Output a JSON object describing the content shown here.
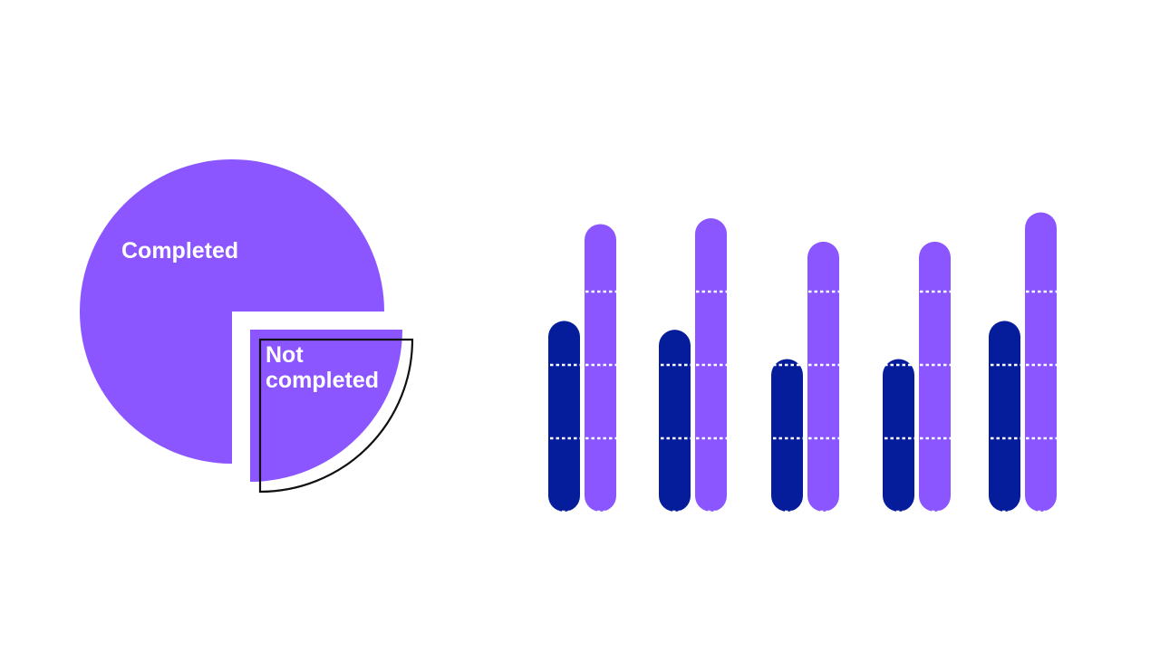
{
  "colors": {
    "background": "#ffffff",
    "primary_purple": "#8b55ff",
    "navy": "#061d9b",
    "outline": "#111111",
    "gridline": "#ffffff"
  },
  "chart_data": [
    {
      "type": "pie",
      "slices": [
        {
          "label": "Completed",
          "value": 75
        },
        {
          "label": "Not completed",
          "value": 25
        }
      ],
      "exploded": "Not completed",
      "label_lines": {
        "completed": [
          "Completed"
        ],
        "not_completed": [
          "Not",
          "completed"
        ]
      }
    },
    {
      "type": "bar",
      "groups": 5,
      "ylim": [
        0,
        100
      ],
      "series": [
        {
          "values": [
            65,
            62,
            52,
            52,
            65
          ]
        },
        {
          "values": [
            98,
            100,
            92,
            92,
            102
          ]
        }
      ],
      "gridlines": [
        25,
        50,
        75
      ],
      "grid": true
    }
  ]
}
